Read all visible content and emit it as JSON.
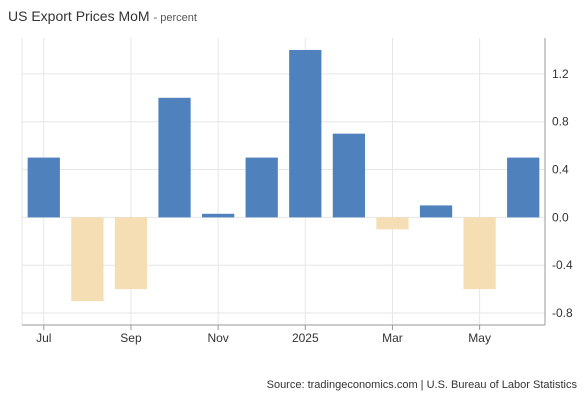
{
  "title": "US Export Prices MoM",
  "subtitle": "percent",
  "source": "Source: tradingeconomics.com | U.S. Bureau of Labor Statistics",
  "colors": {
    "positive": "#4f81bd",
    "negative": "#f5deb3",
    "grid": "#e6e6e6",
    "axis": "#999999",
    "text": "#333333"
  },
  "chart_data": {
    "type": "bar",
    "title": "US Export Prices MoM",
    "subtitle": "percent",
    "categories": [
      "2024-07",
      "2024-08",
      "2024-09",
      "2024-10",
      "2024-11",
      "2024-12",
      "2025-01",
      "2025-02",
      "2025-03",
      "2025-04",
      "2025-05",
      "2025-06"
    ],
    "values": [
      0.5,
      -0.7,
      -0.6,
      1.0,
      0.03,
      0.5,
      1.4,
      0.7,
      -0.1,
      0.1,
      -0.6,
      0.5
    ],
    "x_tick_labels": [
      "Jul",
      "Sep",
      "Nov",
      "2025",
      "Mar",
      "May"
    ],
    "x_tick_indices": [
      0,
      2,
      4,
      6,
      8,
      10
    ],
    "y_ticks": [
      -0.8,
      -0.4,
      0.0,
      0.4,
      0.8,
      1.2
    ],
    "y_tick_labels": [
      "-0.8",
      "-0.4",
      "0.0",
      "0.4",
      "0.8",
      "1.2"
    ],
    "ylim": [
      -0.9,
      1.5
    ],
    "y_axis_position": "right",
    "grid": true,
    "legend": "none",
    "xlabel": "",
    "ylabel": ""
  }
}
